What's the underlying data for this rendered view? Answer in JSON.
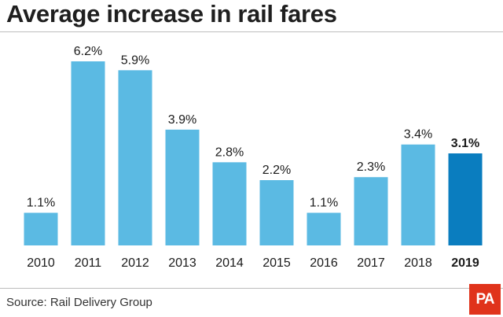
{
  "title": "Average increase in rail fares",
  "source": "Source: Rail Delivery Group",
  "logo_text": "PA",
  "colors": {
    "bar": "#5bbae3",
    "bar_highlight": "#0a7dbf",
    "logo": "#e0331b"
  },
  "chart_data": {
    "type": "bar",
    "title": "Average increase in rail fares",
    "categories": [
      "2010",
      "2011",
      "2012",
      "2013",
      "2014",
      "2015",
      "2016",
      "2017",
      "2018",
      "2019"
    ],
    "values": [
      1.1,
      6.2,
      5.9,
      3.9,
      2.8,
      2.2,
      1.1,
      2.3,
      3.4,
      3.1
    ],
    "data_labels": [
      "1.1%",
      "6.2%",
      "5.9%",
      "3.9%",
      "2.8%",
      "2.2%",
      "1.1%",
      "2.3%",
      "3.4%",
      "3.1%"
    ],
    "highlight_category": "2019",
    "unit": "%",
    "ylim": [
      0,
      6.2
    ],
    "grid": false,
    "xlabel": "",
    "ylabel": ""
  }
}
